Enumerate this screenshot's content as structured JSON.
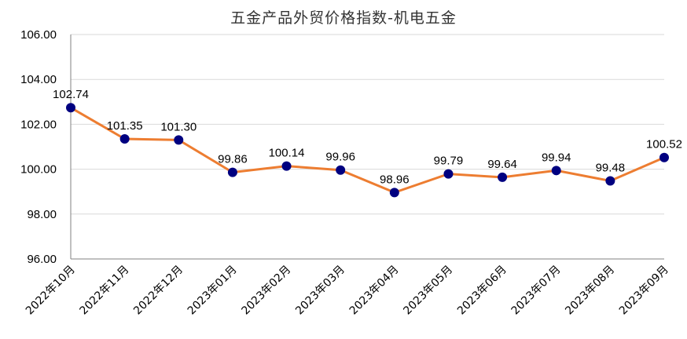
{
  "chart_data": {
    "type": "line",
    "title": "五金产品外贸价格指数-机电五金",
    "categories": [
      "2022年10月",
      "2022年11月",
      "2022年12月",
      "2023年01月",
      "2023年02月",
      "2023年03月",
      "2023年04月",
      "2023年05月",
      "2023年06月",
      "2023年07月",
      "2023年08月",
      "2023年09月"
    ],
    "series": [
      {
        "values": [
          102.74,
          101.35,
          101.3,
          99.86,
          100.14,
          99.96,
          98.96,
          99.79,
          99.64,
          99.94,
          99.48,
          100.52
        ]
      }
    ],
    "data_labels": [
      "102.74",
      "101.35",
      "101.30",
      "99.86",
      "100.14",
      "99.96",
      "98.96",
      "99.79",
      "99.64",
      "99.94",
      "99.48",
      "100.52"
    ],
    "yticks": [
      "96.00",
      "98.00",
      "100.00",
      "102.00",
      "104.00",
      "106.00"
    ],
    "ylim": [
      96,
      106
    ],
    "grid": true,
    "colors": {
      "line": "#ED7D31",
      "marker": "#000080",
      "grid": "#D9D9D9",
      "axis": "#808080"
    }
  }
}
